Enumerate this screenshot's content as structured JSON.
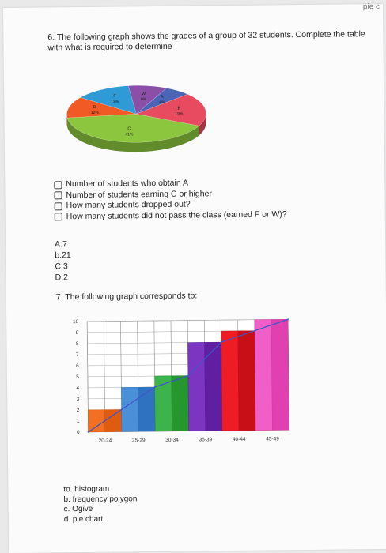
{
  "corner_text": "pie c",
  "question6": {
    "text": "6. The following graph shows the grades of a group of 32 students. Complete the table with what is required to determine",
    "options": [
      "Number of students who obtain A",
      "Number of students earning C or higher",
      "How many students dropped out?",
      "How many students did not pass the class (earned F or W)?"
    ],
    "answers": [
      "A.7",
      "b.21",
      "C.3",
      "D.2"
    ]
  },
  "pie_chart": {
    "type": "pie",
    "slices": [
      {
        "label": "C",
        "value": 41,
        "pct_label": "41%",
        "color": "#8cc63f"
      },
      {
        "label": "D",
        "value": 12,
        "pct_label": "12%",
        "color": "#f15a24"
      },
      {
        "label": "F",
        "value": 13,
        "pct_label": "13%",
        "color": "#2e9bd6"
      },
      {
        "label": "W",
        "value": 9,
        "pct_label": "9%",
        "color": "#8b4fa8"
      },
      {
        "label": "A",
        "value": 6,
        "pct_label": "6%",
        "color": "#4a64b6"
      },
      {
        "label": "B",
        "value": 19,
        "pct_label": "19%",
        "color": "#e84a5f"
      }
    ]
  },
  "question7": {
    "text": "7. The following graph corresponds to:",
    "choices": [
      "to. histogram",
      "b. frequency polygon",
      "c. Ogive",
      "d. pie chart"
    ]
  },
  "chart_data": {
    "type": "bar",
    "categories": [
      "20-24",
      "25-29",
      "30-34",
      "35-39",
      "40-44",
      "45-49"
    ],
    "values": [
      2,
      4,
      5,
      8,
      9,
      10
    ],
    "polygon": [
      0,
      2,
      4,
      5,
      8,
      9,
      10
    ],
    "ylim": [
      0,
      10
    ],
    "yticks": [
      0,
      1,
      2,
      3,
      4,
      5,
      6,
      7,
      8,
      9,
      10
    ],
    "bar_colors": [
      [
        "#f36f21",
        "#e05a10"
      ],
      [
        "#4a90d9",
        "#2f73c0"
      ],
      [
        "#3cb44b",
        "#26962f"
      ],
      [
        "#7b35c0",
        "#5f1fa0"
      ],
      [
        "#ee1c25",
        "#c80f18"
      ],
      [
        "#f05fc8",
        "#e040b0"
      ]
    ]
  }
}
